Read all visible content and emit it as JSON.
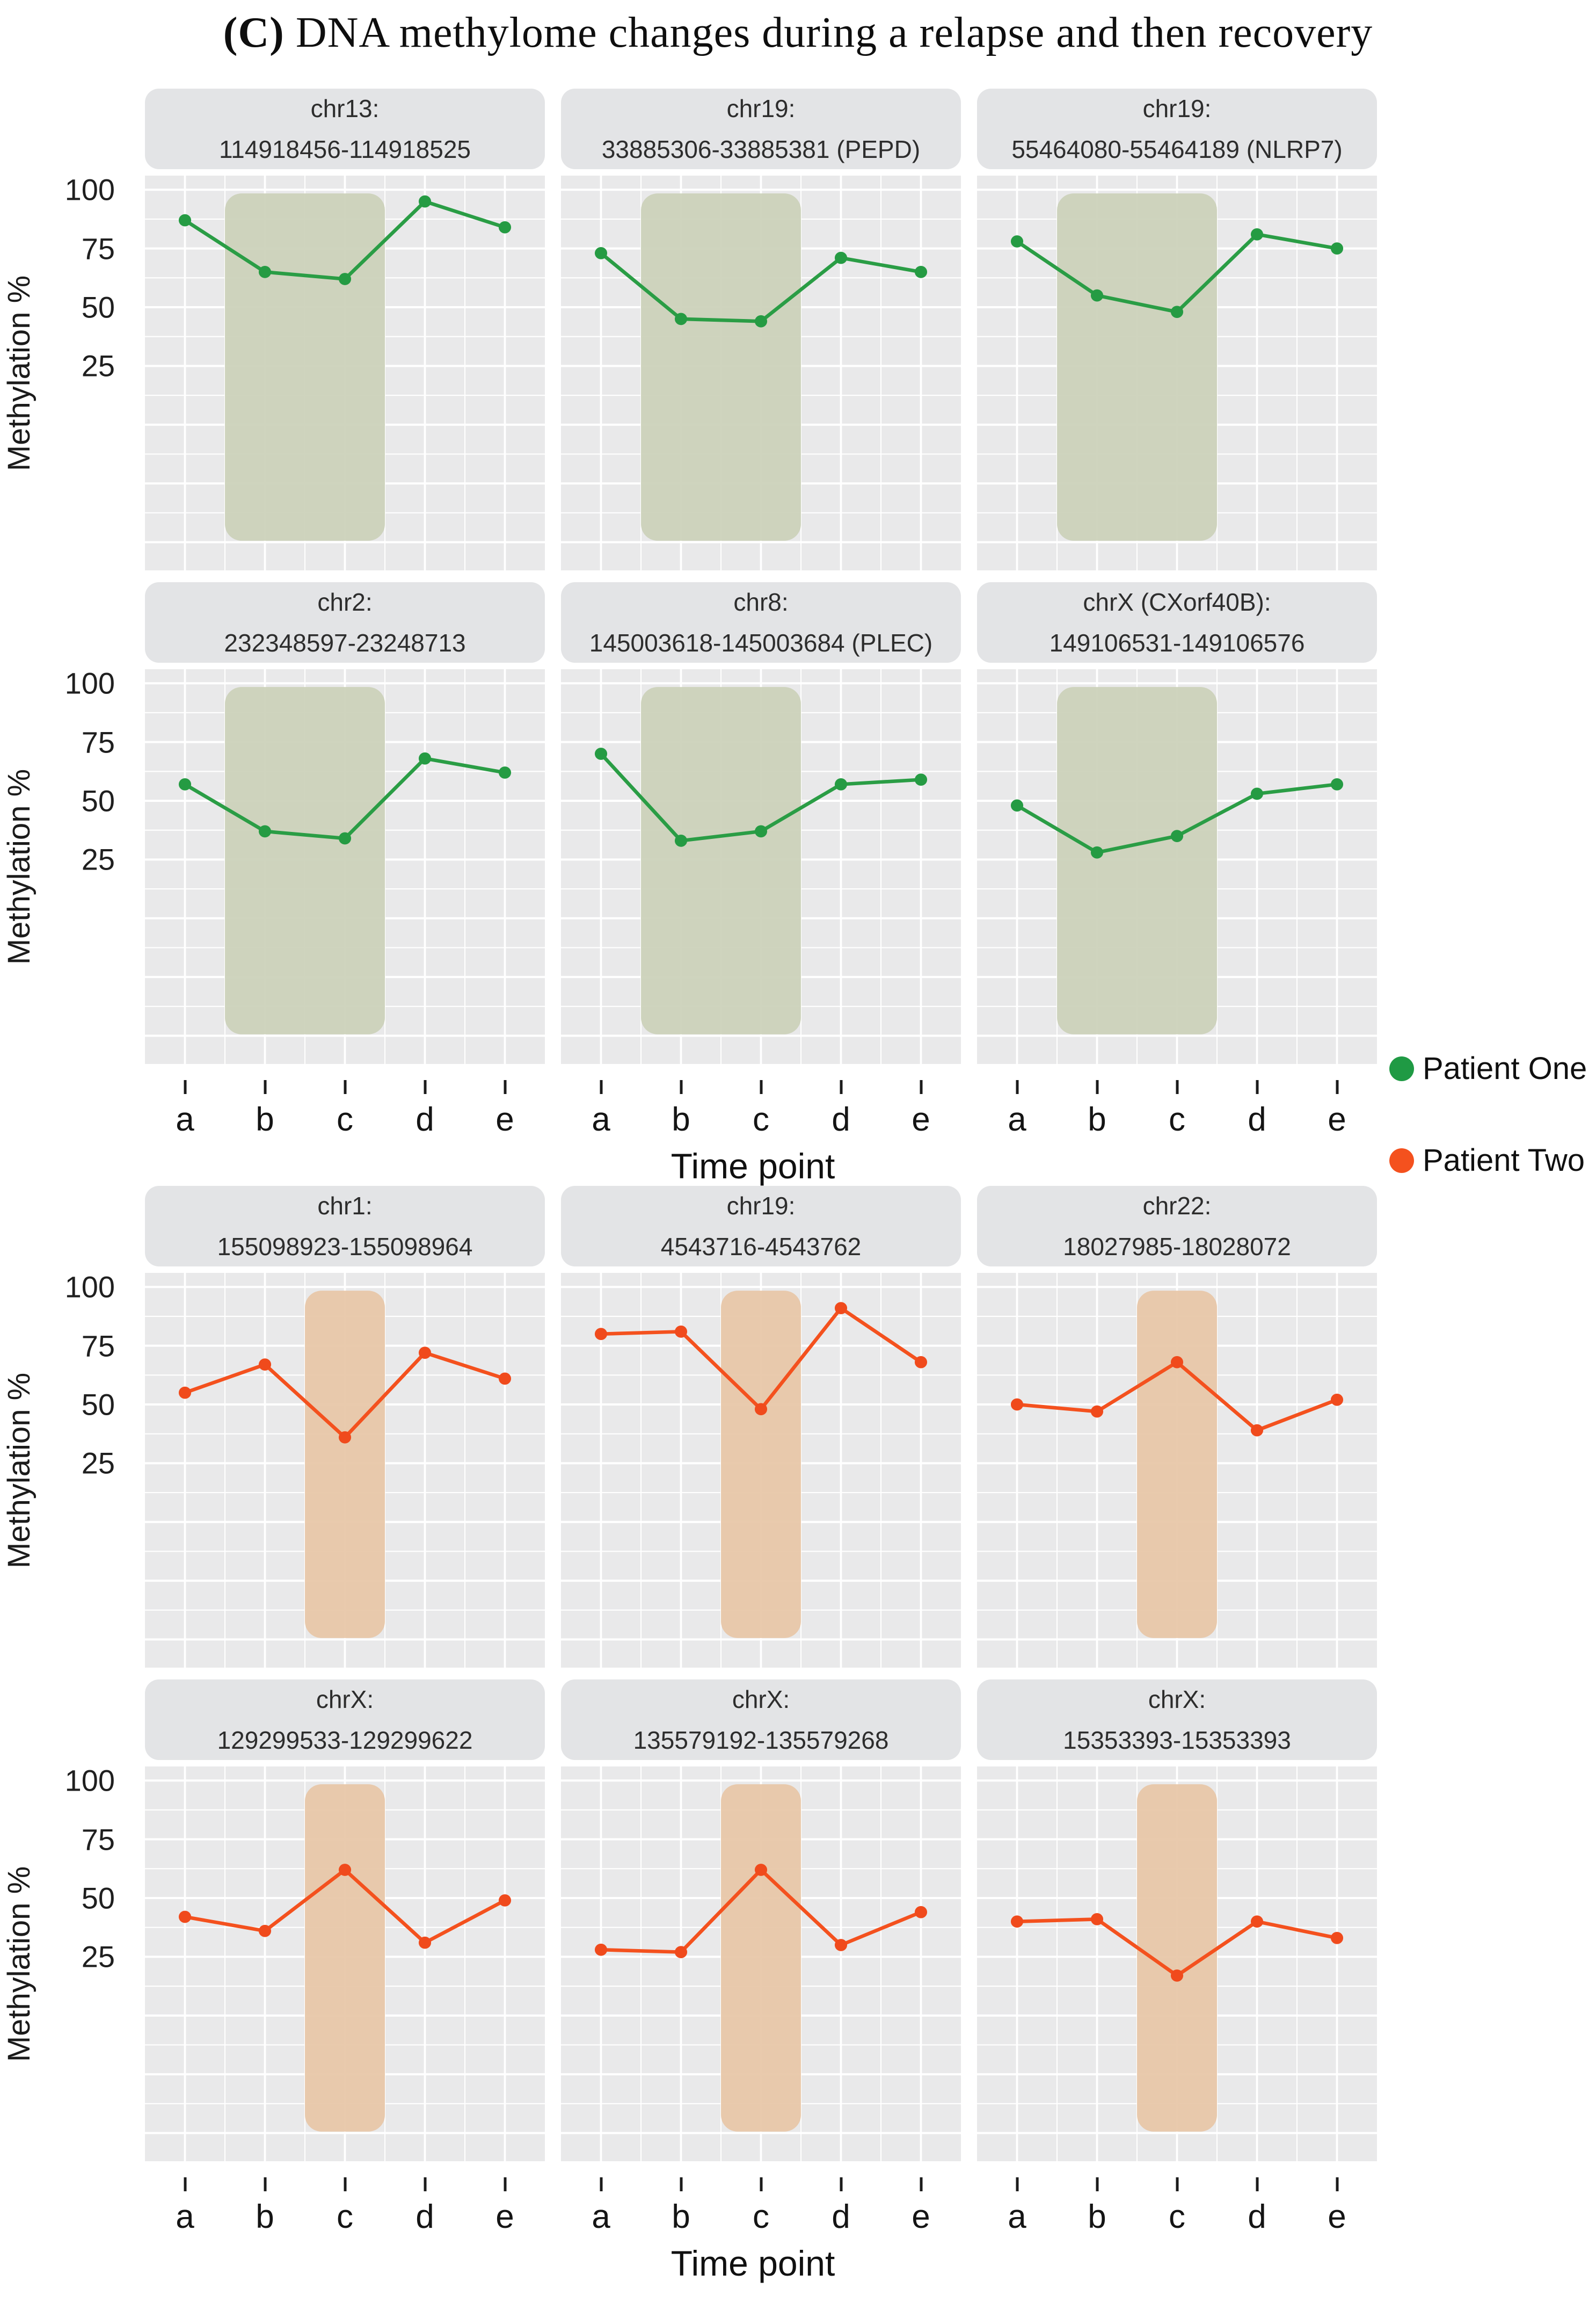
{
  "title": {
    "prefix": "(C)",
    "rest": " DNA methylome changes during a relapse and then recovery"
  },
  "legend": {
    "items": [
      {
        "label": "Patient One",
        "color": "#1f9a44"
      },
      {
        "label": "Patient Two",
        "color": "#f4511e"
      }
    ]
  },
  "styles": {
    "panel_bg": "#e9e9ea",
    "header_bg": "#e3e4e6",
    "grid_color": "#ffffff",
    "text_color": "#1b1b1b"
  },
  "chart_data": [
    {
      "type": "line",
      "series": "Patient One",
      "line_color": "#2a9d45",
      "point_color": "#259b43",
      "band_color": "#ccd2ba",
      "band_categories": [
        "b",
        "c"
      ],
      "x": [
        "a",
        "b",
        "c",
        "d",
        "e"
      ],
      "xlabel": "Time point",
      "ylabel": "Methylation %",
      "y_ticks": [
        100,
        75,
        50,
        25
      ],
      "y_visual_range": [
        -62,
        106
      ],
      "grid": true,
      "legend_position": "right",
      "panels": [
        {
          "title_line1": "chr13:",
          "title_line2": "114918456-114918525",
          "values": [
            87,
            65,
            62,
            95,
            84
          ]
        },
        {
          "title_line1": "chr19:",
          "title_line2": "33885306-33885381 (PEPD)",
          "values": [
            73,
            45,
            44,
            71,
            65
          ]
        },
        {
          "title_line1": "chr19:",
          "title_line2": "55464080-55464189 (NLRP7)",
          "values": [
            78,
            55,
            48,
            81,
            75
          ]
        },
        {
          "title_line1": "chr2:",
          "title_line2": "232348597-23248713",
          "values": [
            57,
            37,
            34,
            68,
            62
          ]
        },
        {
          "title_line1": "chr8:",
          "title_line2": "145003618-145003684 (PLEC)",
          "values": [
            70,
            33,
            37,
            57,
            59
          ]
        },
        {
          "title_line1": "chrX (CXorf40B):",
          "title_line2": "149106531-149106576",
          "values": [
            48,
            28,
            35,
            53,
            57
          ]
        }
      ]
    },
    {
      "type": "line",
      "series": "Patient Two",
      "line_color": "#f4511e",
      "point_color": "#f04a1c",
      "band_color": "#e8c7a9",
      "band_categories": [
        "c",
        "c"
      ],
      "x": [
        "a",
        "b",
        "c",
        "d",
        "e"
      ],
      "xlabel": "Time point",
      "ylabel": "Methylation %",
      "y_ticks": [
        100,
        75,
        50,
        25
      ],
      "y_visual_range": [
        -62,
        106
      ],
      "grid": true,
      "legend_position": "right",
      "panels": [
        {
          "title_line1": "chr1:",
          "title_line2": "155098923-155098964",
          "values": [
            55,
            67,
            36,
            72,
            61
          ]
        },
        {
          "title_line1": "chr19:",
          "title_line2": "4543716-4543762",
          "values": [
            80,
            81,
            48,
            91,
            68
          ]
        },
        {
          "title_line1": "chr22:",
          "title_line2": "18027985-18028072",
          "values": [
            50,
            47,
            68,
            39,
            52
          ]
        },
        {
          "title_line1": "chrX:",
          "title_line2": "129299533-129299622",
          "values": [
            42,
            36,
            62,
            31,
            49
          ]
        },
        {
          "title_line1": "chrX:",
          "title_line2": "135579192-135579268",
          "values": [
            28,
            27,
            62,
            30,
            44
          ]
        },
        {
          "title_line1": "chrX:",
          "title_line2": "15353393-15353393",
          "values": [
            40,
            41,
            17,
            40,
            33
          ]
        }
      ]
    }
  ]
}
